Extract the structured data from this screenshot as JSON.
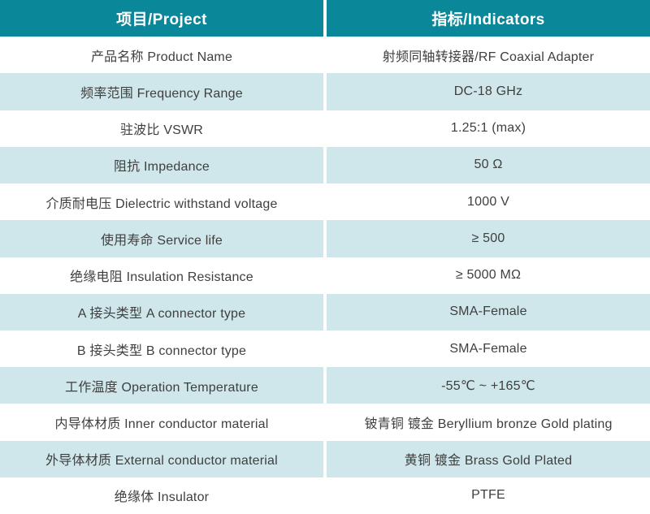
{
  "table": {
    "header": {
      "project": "项目/Project",
      "indicators": "指标/Indicators"
    },
    "rows": [
      {
        "project": "产品名称 Product Name",
        "indicator": "射频同轴转接器/RF Coaxial Adapter"
      },
      {
        "project": "频率范围 Frequency Range",
        "indicator": "DC-18 GHz"
      },
      {
        "project": "驻波比 VSWR",
        "indicator": "1.25:1 (max)"
      },
      {
        "project": "阻抗 Impedance",
        "indicator": "50 Ω"
      },
      {
        "project": "介质耐电压 Dielectric withstand voltage",
        "indicator": "1000 V"
      },
      {
        "project": "使用寿命 Service life",
        "indicator": "≥ 500"
      },
      {
        "project": "绝缘电阻 Insulation Resistance",
        "indicator": "≥ 5000 MΩ"
      },
      {
        "project": "A 接头类型 A connector type",
        "indicator": "SMA-Female"
      },
      {
        "project": "B 接头类型 B connector type",
        "indicator": "SMA-Female"
      },
      {
        "project": "工作温度 Operation Temperature",
        "indicator": "-55℃ ~ +165℃"
      },
      {
        "project": "内导体材质 Inner conductor material",
        "indicator": "铍青铜 镀金 Beryllium bronze Gold plating"
      },
      {
        "project": "外导体材质 External conductor material",
        "indicator": "黄铜 镀金 Brass Gold Plated"
      },
      {
        "project": "绝缘体 Insulator",
        "indicator": "PTFE"
      }
    ],
    "colors": {
      "header_bg": "#0b879a",
      "header_text": "#ffffff",
      "row_alt_bg": "#cfe6ea",
      "row_bg": "#ffffff",
      "body_text": "#3f3f3f",
      "divider": "#ffffff"
    }
  }
}
